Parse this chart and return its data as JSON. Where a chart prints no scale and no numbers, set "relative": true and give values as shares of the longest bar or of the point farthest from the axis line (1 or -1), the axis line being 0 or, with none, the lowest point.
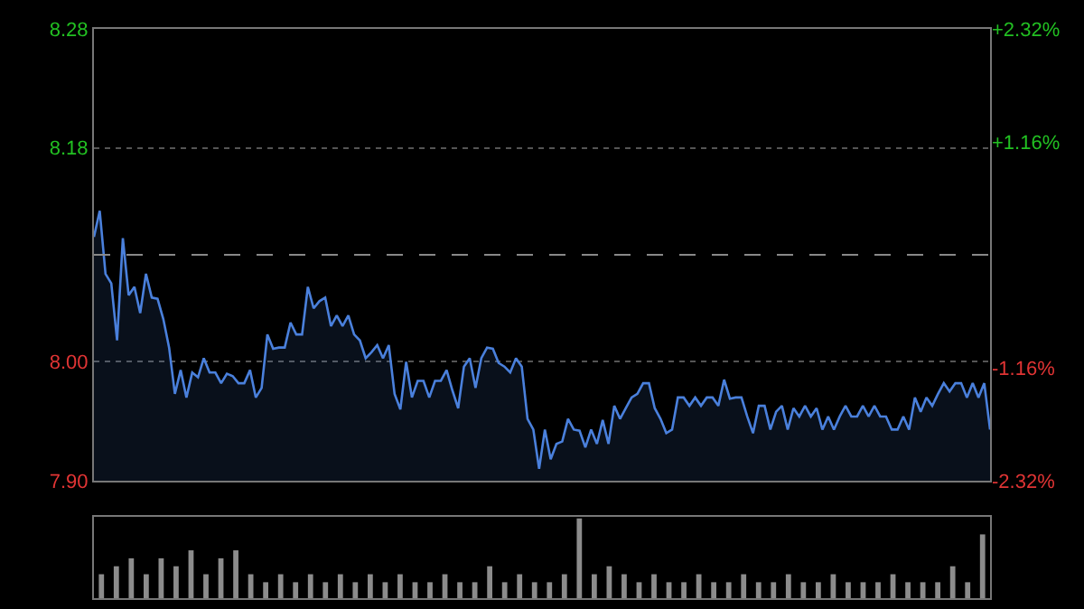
{
  "chart_data": [
    {
      "type": "area",
      "color": "#4a80dc",
      "grid": "y",
      "tick_labels": "y",
      "categories": [
        null,
        null,
        null,
        null,
        null,
        null,
        null,
        null,
        null,
        null,
        null,
        null,
        null,
        null,
        null,
        null,
        null,
        null,
        null,
        null,
        null,
        null,
        null,
        null,
        null,
        null,
        null,
        null,
        null,
        null,
        null,
        null,
        null,
        null,
        null,
        null,
        null,
        null,
        null,
        null,
        null,
        null,
        null,
        null,
        null,
        null,
        null,
        null,
        null,
        null,
        null,
        null,
        null,
        null,
        null,
        null,
        null,
        null,
        null,
        null,
        null,
        null,
        null,
        null,
        null,
        null,
        null,
        null,
        null,
        null,
        null,
        null,
        null,
        null,
        null,
        null,
        null,
        null,
        null,
        null,
        null,
        null,
        null,
        null,
        null,
        null,
        null,
        null,
        null,
        null,
        null,
        null,
        null,
        null,
        null,
        null,
        null,
        null,
        null,
        null,
        null,
        null,
        null,
        null,
        null,
        null,
        null,
        null,
        null,
        null,
        null,
        null,
        null,
        null,
        null,
        null,
        null,
        null,
        null,
        null,
        null,
        null,
        null,
        null,
        null,
        null,
        null,
        null,
        null,
        null,
        null,
        null,
        null,
        null,
        null,
        null,
        null,
        null,
        null,
        null,
        null,
        null,
        null,
        null,
        null,
        null,
        null,
        null,
        null,
        null,
        null,
        null,
        null,
        null,
        null,
        null
      ],
      "values": [
        8.105,
        8.127,
        8.074,
        8.066,
        8.018,
        8.104,
        8.056,
        8.063,
        8.041,
        8.074,
        8.054,
        8.053,
        8.036,
        8.012,
        7.973,
        7.993,
        7.97,
        7.991,
        7.987,
        8.003,
        7.991,
        7.991,
        7.982,
        7.99,
        7.988,
        7.982,
        7.982,
        7.993,
        7.97,
        7.978,
        8.023,
        8.011,
        8.012,
        8.012,
        8.033,
        8.023,
        8.023,
        8.063,
        8.045,
        8.051,
        8.054,
        8.03,
        8.039,
        8.03,
        8.039,
        8.023,
        8.018,
        8.003,
        8.008,
        8.014,
        8.003,
        8.014,
        7.973,
        7.96,
        8.0,
        7.97,
        7.984,
        7.984,
        7.97,
        7.984,
        7.984,
        7.993,
        7.976,
        7.961,
        7.996,
        8.003,
        7.978,
        8.003,
        8.012,
        8.011,
        7.999,
        7.996,
        7.991,
        8.003,
        7.996,
        7.952,
        7.943,
        7.91,
        7.943,
        7.918,
        7.931,
        7.933,
        7.952,
        7.943,
        7.942,
        7.928,
        7.943,
        7.931,
        7.951,
        7.931,
        7.963,
        7.952,
        7.961,
        7.97,
        7.973,
        7.982,
        7.982,
        7.961,
        7.952,
        7.94,
        7.943,
        7.97,
        7.97,
        7.963,
        7.97,
        7.963,
        7.97,
        7.97,
        7.963,
        7.985,
        7.969,
        7.97,
        7.97,
        7.954,
        7.94,
        7.963,
        7.963,
        7.943,
        7.958,
        7.963,
        7.943,
        7.961,
        7.954,
        7.963,
        7.954,
        7.961,
        7.943,
        7.954,
        7.943,
        7.954,
        7.963,
        7.954,
        7.954,
        7.963,
        7.954,
        7.963,
        7.954,
        7.954,
        7.943,
        7.943,
        7.954,
        7.943,
        7.97,
        7.958,
        7.97,
        7.963,
        7.973,
        7.982,
        7.975,
        7.982,
        7.982,
        7.97,
        7.982,
        7.97,
        7.982,
        7.943
      ],
      "ylim": [
        7.9,
        8.28
      ],
      "yticks": [
        {
          "value": 7.9,
          "label": "7.90"
        },
        {
          "value": 8.0,
          "label": "8.00"
        },
        8.18,
        8.28
      ],
      "y2lim": [
        -2.32,
        2.32
      ],
      "y2ticks": [
        {
          "value": -2.32,
          "label": "-2.32%"
        },
        {
          "value": -1.16,
          "label": "-1.16%"
        },
        {
          "value": 1.16,
          "label": "+1.16%"
        },
        {
          "value": 2.32,
          "label": "+2.32%"
        }
      ],
      "ref_lines": [
        {
          "axis": "y",
          "value": 8.09,
          "line_style": "dashed"
        }
      ]
    },
    {
      "type": "bar",
      "relative": true,
      "color": "#8c8c8c",
      "categories": [
        null,
        null,
        null,
        null,
        null,
        null,
        null,
        null,
        null,
        null,
        null,
        null,
        null,
        null,
        null,
        null,
        null,
        null,
        null,
        null,
        null,
        null,
        null,
        null,
        null,
        null,
        null,
        null,
        null,
        null,
        null,
        null,
        null,
        null,
        null,
        null,
        null,
        null,
        null,
        null,
        null,
        null,
        null,
        null,
        null,
        null,
        null,
        null,
        null,
        null,
        null,
        null,
        null,
        null,
        null,
        null,
        null,
        null,
        null,
        null
      ],
      "values": [
        0.3,
        0.4,
        0.5,
        0.3,
        0.5,
        0.4,
        0.6,
        0.3,
        0.5,
        0.6,
        0.3,
        0.2,
        0.3,
        0.2,
        0.3,
        0.2,
        0.3,
        0.2,
        0.3,
        0.2,
        0.3,
        0.2,
        0.2,
        0.3,
        0.2,
        0.2,
        0.4,
        0.2,
        0.3,
        0.2,
        0.2,
        0.3,
        1,
        0.3,
        0.4,
        0.3,
        0.2,
        0.3,
        0.2,
        0.2,
        0.3,
        0.2,
        0.2,
        0.3,
        0.2,
        0.2,
        0.3,
        0.2,
        0.2,
        0.3,
        0.2,
        0.2,
        0.2,
        0.3,
        0.2,
        0.2,
        0.2,
        0.4,
        0.2,
        0.8
      ]
    }
  ]
}
